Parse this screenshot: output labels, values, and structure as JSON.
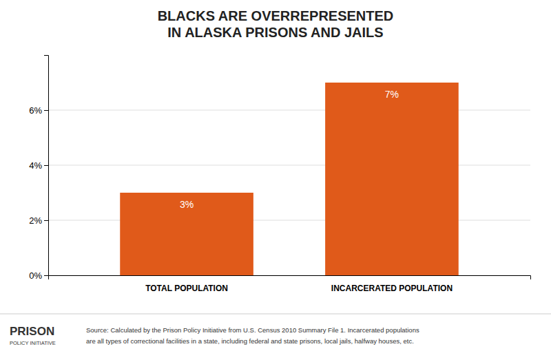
{
  "chart_data": {
    "type": "bar",
    "title": [
      "BLACKS ARE OVERREPRESENTED",
      "IN ALASKA PRISONS AND JAILS"
    ],
    "categories": [
      "TOTAL POPULATION",
      "INCARCERATED POPULATION"
    ],
    "values": [
      3,
      7
    ],
    "value_labels": [
      "3%",
      "7%"
    ],
    "data_labels": true,
    "color": "#e05a1a",
    "ylim": [
      0,
      8
    ],
    "yticks": [
      {
        "value": 0,
        "label": "0%"
      },
      {
        "value": 2,
        "label": "2%"
      },
      {
        "value": 4,
        "label": "4%"
      },
      {
        "value": 6,
        "label": "6%"
      }
    ],
    "grid": true,
    "annotations": [
      "Source: Calculated by the Prison Policy Initiative from U.S. Census 2010 Summary File 1. Incarcerated populations",
      "are all types of correctional facilities in a state, including federal and state prisons, local jails, halfway houses, etc.",
      "PRISON",
      "POLICY INITIATIVE"
    ]
  }
}
